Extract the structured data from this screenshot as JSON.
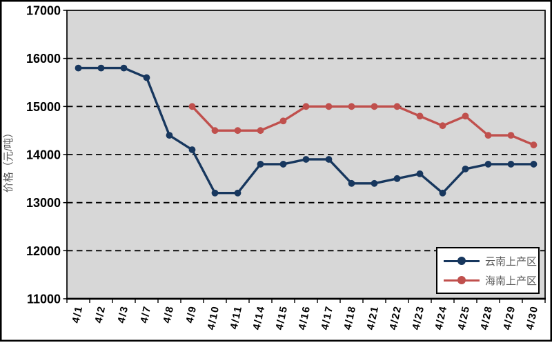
{
  "chart_data": {
    "type": "line",
    "title": "",
    "ylabel": "价格（元/吨）",
    "ylim": [
      11000,
      17000
    ],
    "ytick_step": 1000,
    "grid": "horizontal-dashed",
    "legend_position": "bottom-right",
    "plot_bg_color": "#D7D7D7",
    "x": [
      "4/1",
      "4/2",
      "4/3",
      "4/7",
      "4/8",
      "4/9",
      "4/10",
      "4/11",
      "4/14",
      "4/15",
      "4/16",
      "4/17",
      "4/18",
      "4/21",
      "4/22",
      "4/23",
      "4/24",
      "4/25",
      "4/28",
      "4/29",
      "4/30"
    ],
    "series": [
      {
        "name": "云南上产区",
        "color": "#17375E",
        "values": [
          15800,
          15800,
          15800,
          15600,
          14400,
          14100,
          13200,
          13200,
          13800,
          13800,
          13900,
          13900,
          13400,
          13400,
          13500,
          13600,
          13200,
          13700,
          13800,
          13800,
          13800
        ]
      },
      {
        "name": "海南上产区",
        "color": "#C0504D",
        "values": [
          null,
          null,
          null,
          null,
          null,
          15000,
          14500,
          14500,
          14500,
          14700,
          15000,
          15000,
          15000,
          15000,
          15000,
          14800,
          14600,
          14800,
          14400,
          14400,
          14200
        ]
      }
    ]
  }
}
